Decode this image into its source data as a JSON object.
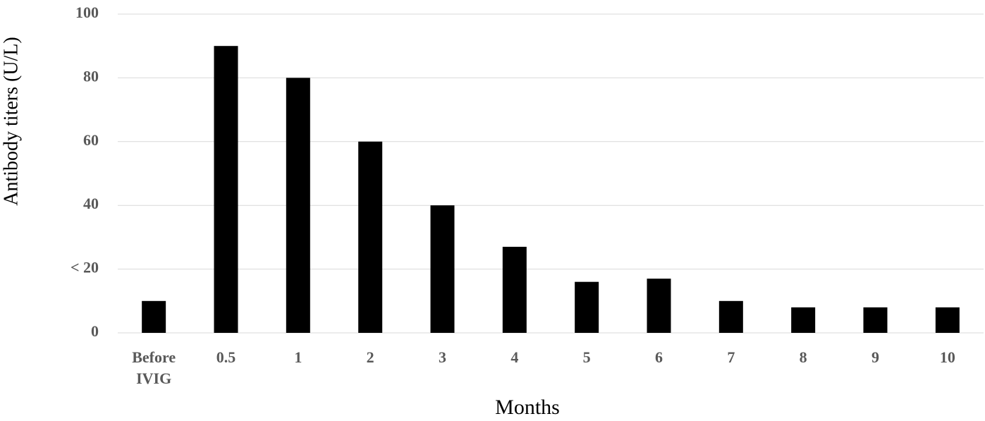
{
  "chart_data": {
    "type": "bar",
    "x_label": "Months",
    "y_label": "Antibody titers (U/L)",
    "categories": [
      "Before IVIG",
      "0.5",
      "1",
      "2",
      "3",
      "4",
      "5",
      "6",
      "7",
      "8",
      "9",
      "10"
    ],
    "values": [
      10,
      90,
      80,
      60,
      40,
      27,
      16,
      17,
      10,
      8,
      8,
      8
    ],
    "color": "#000000",
    "ylim": [
      0,
      100
    ],
    "yticks": [
      0,
      {
        "value": 20,
        "label": "< 20"
      },
      40,
      60,
      80,
      100
    ],
    "grid": true
  }
}
